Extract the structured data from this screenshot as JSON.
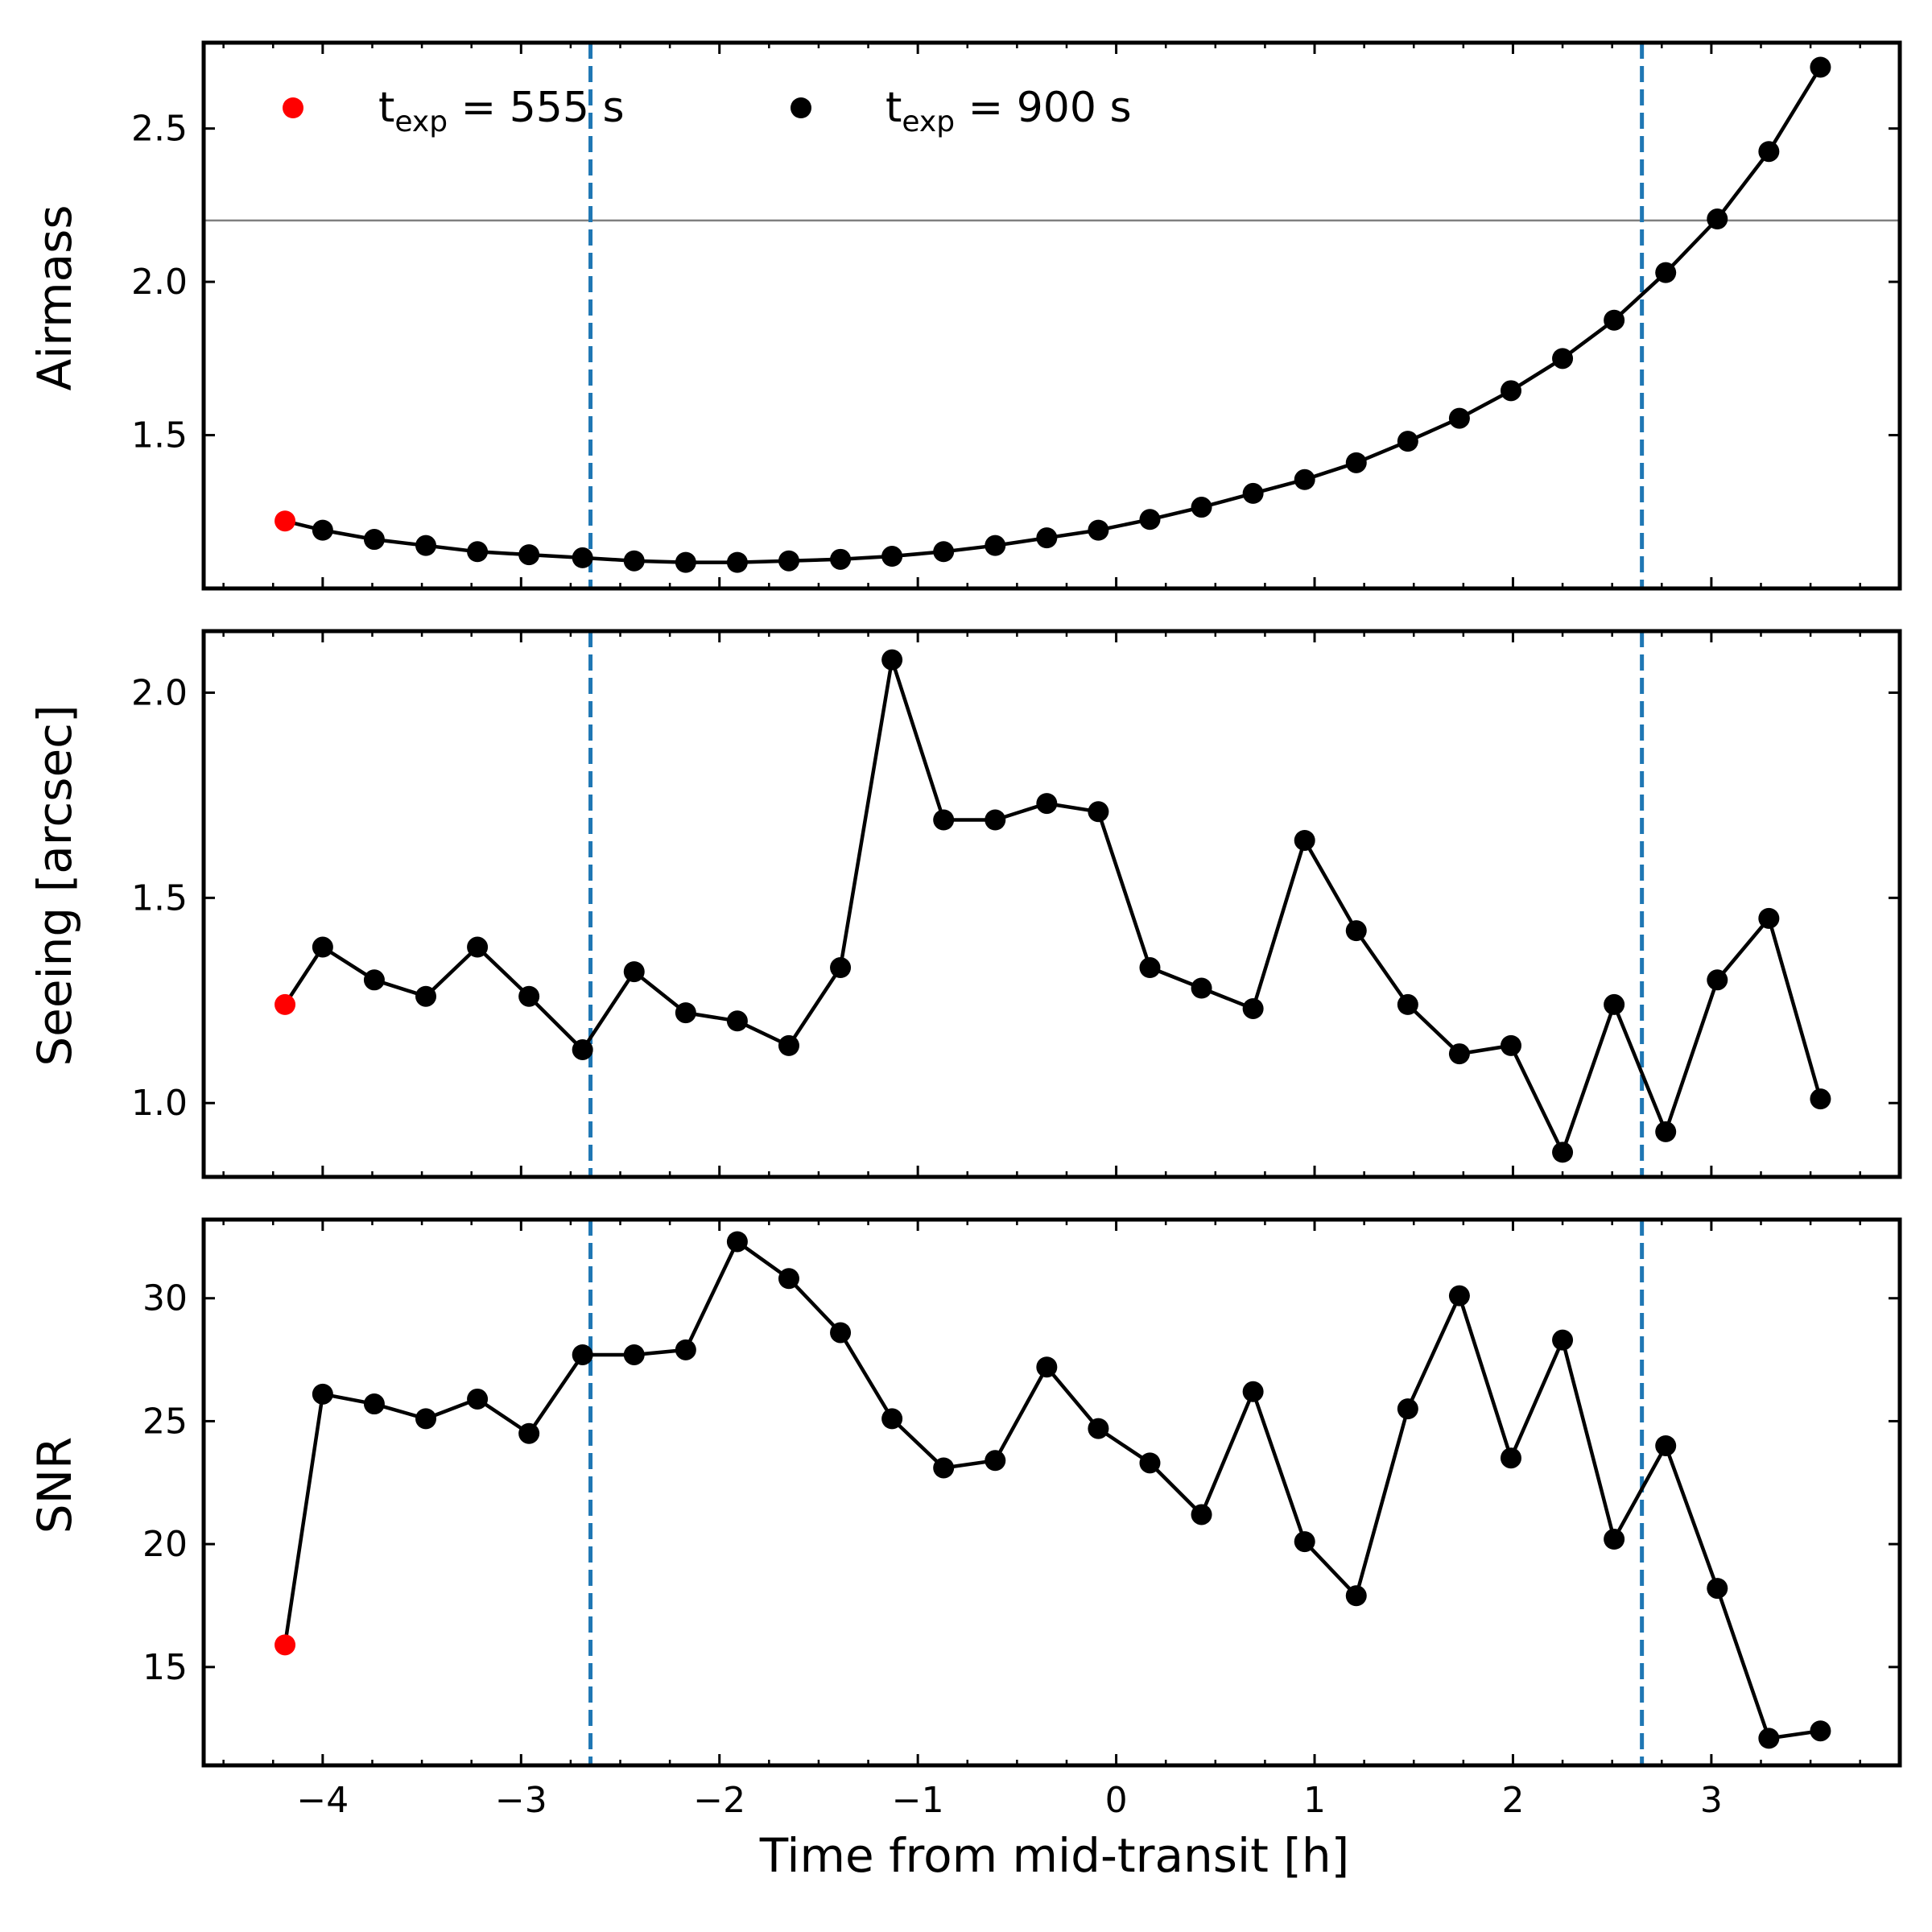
{
  "chart_data": {
    "type": "line",
    "xlabel": "Time from mid-transit [h]",
    "x_ticks": [
      -4,
      -3,
      -2,
      -1,
      0,
      1,
      2,
      3
    ],
    "x_tick_labels": [
      "−4",
      "−3",
      "−2",
      "−1",
      "0",
      "1",
      "2",
      "3"
    ],
    "xlim": [
      -4.6,
      3.95
    ],
    "transit_boundaries": [
      -2.65,
      2.65
    ],
    "legend": {
      "entries": [
        {
          "prefix": "t",
          "sub": "exp",
          "suffix": " = 555 s",
          "color": "#ff0000"
        },
        {
          "prefix": "t",
          "sub": "exp",
          "suffix": " = 900 s",
          "color": "#000000"
        }
      ]
    },
    "colors": {
      "first_point": "#ff0000",
      "series": "#000000",
      "vline": "#1f77b4",
      "hline": "#808080"
    },
    "x": [
      -4.19,
      -4.0,
      -3.74,
      -3.48,
      -3.22,
      -2.96,
      -2.69,
      -2.43,
      -2.17,
      -1.91,
      -1.65,
      -1.39,
      -1.13,
      -0.87,
      -0.61,
      -0.35,
      -0.09,
      0.17,
      0.43,
      0.69,
      0.95,
      1.21,
      1.47,
      1.73,
      1.99,
      2.25,
      2.51,
      2.77,
      3.03,
      3.29,
      3.55
    ],
    "panels": [
      {
        "id": "airmass",
        "ylabel": "Airmass",
        "ylim": [
          1.0,
          2.78
        ],
        "y_ticks": [
          1.5,
          2.0,
          2.5
        ],
        "y_tick_labels": [
          "1.5",
          "2.0",
          "2.5"
        ],
        "hline": 2.2,
        "values": [
          1.22,
          1.19,
          1.16,
          1.14,
          1.12,
          1.11,
          1.1,
          1.09,
          1.085,
          1.085,
          1.09,
          1.095,
          1.105,
          1.12,
          1.14,
          1.165,
          1.19,
          1.225,
          1.265,
          1.31,
          1.355,
          1.41,
          1.48,
          1.555,
          1.645,
          1.75,
          1.875,
          2.03,
          2.205,
          2.425,
          2.7
        ]
      },
      {
        "id": "seeing",
        "ylabel": "Seeing [arcsec]",
        "ylim": [
          0.82,
          2.15
        ],
        "y_ticks": [
          1.0,
          1.5,
          2.0
        ],
        "y_tick_labels": [
          "1.0",
          "1.5",
          "2.0"
        ],
        "hline": null,
        "values": [
          1.24,
          1.38,
          1.3,
          1.26,
          1.38,
          1.26,
          1.13,
          1.32,
          1.22,
          1.2,
          1.14,
          1.33,
          2.08,
          1.69,
          1.69,
          1.73,
          1.71,
          1.33,
          1.28,
          1.23,
          1.64,
          1.42,
          1.24,
          1.12,
          1.14,
          0.88,
          1.24,
          0.93,
          1.3,
          1.45,
          1.01
        ]
      },
      {
        "id": "snr",
        "ylabel": "SNR",
        "ylim": [
          11.0,
          33.2
        ],
        "y_ticks": [
          15,
          20,
          25,
          30
        ],
        "y_tick_labels": [
          "15",
          "20",
          "25",
          "30"
        ],
        "hline": null,
        "values": [
          15.9,
          26.1,
          25.7,
          25.1,
          25.9,
          24.5,
          27.7,
          27.7,
          27.9,
          32.3,
          30.8,
          28.6,
          25.1,
          23.1,
          23.4,
          27.2,
          24.7,
          23.3,
          21.2,
          26.2,
          20.1,
          17.9,
          25.5,
          30.1,
          23.5,
          28.3,
          20.2,
          24.0,
          18.2,
          12.1,
          12.4
        ]
      }
    ]
  }
}
